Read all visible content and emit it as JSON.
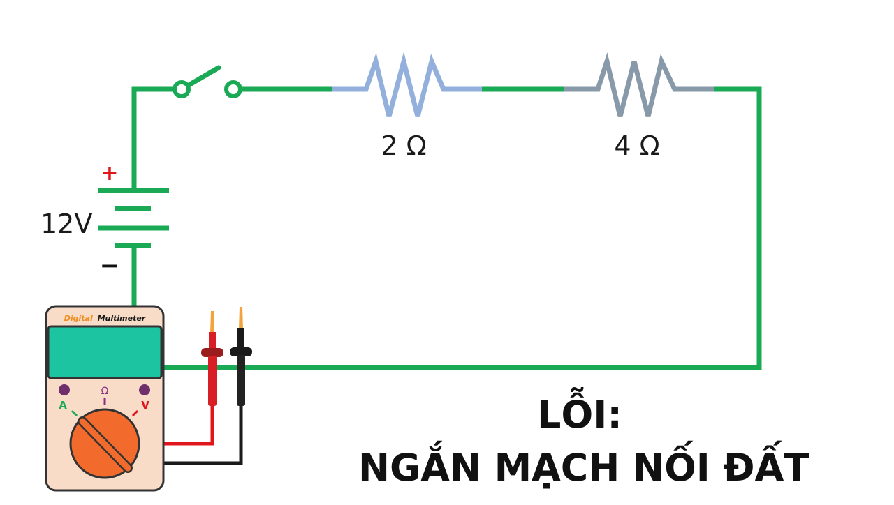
{
  "colors": {
    "wire": "#1aaa55",
    "resistor_1": "#93b0dd",
    "resistor_2": "#8899aa",
    "positive": "#e0161c",
    "negative": "#111111",
    "meter_body": "#f8dcc8",
    "meter_screen": "#1cc4a2",
    "meter_dial": "#f26a2c",
    "lead_red": "#e0161c",
    "lead_black": "#1a1a1a"
  },
  "battery": {
    "voltage_label": "12V",
    "positive_sign": "+",
    "negative_sign": "−"
  },
  "resistors": [
    {
      "value_label": "2 Ω"
    },
    {
      "value_label": "4 Ω"
    }
  ],
  "multimeter": {
    "brand_accent": "Digital",
    "brand_name": "Multimeter",
    "mode_current": "A",
    "mode_resistance": "Ω",
    "mode_voltage": "V"
  },
  "caption": {
    "line1": "LỖI:",
    "line2": "NGẮN MẠCH NỐI ĐẤT"
  }
}
